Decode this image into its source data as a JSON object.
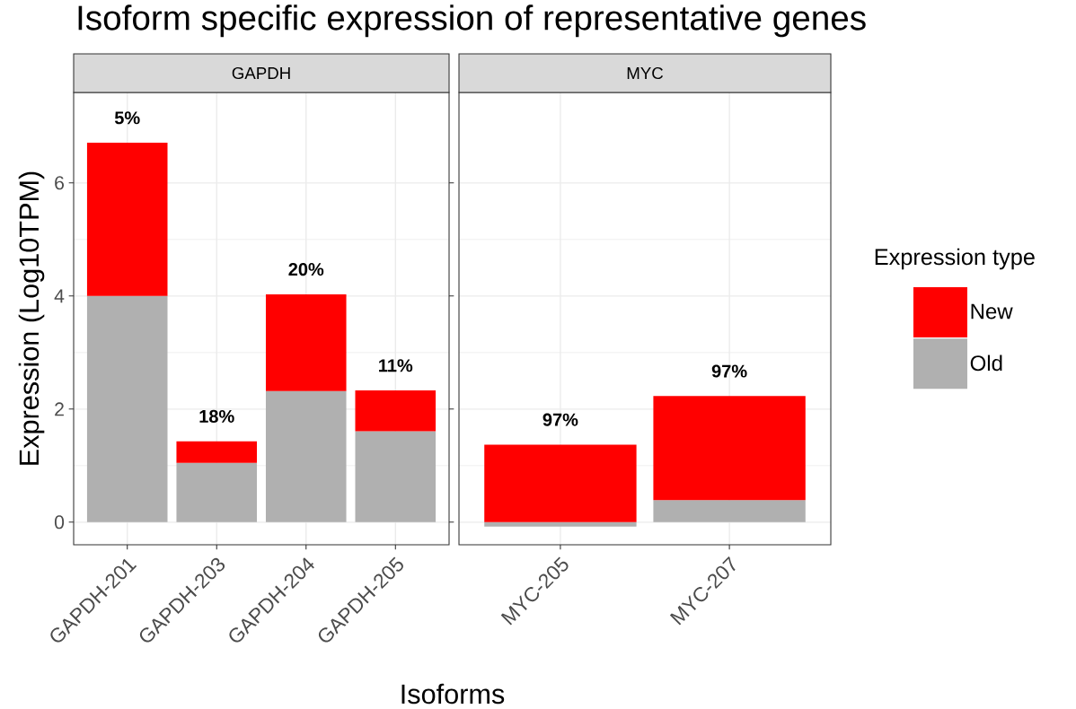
{
  "chart_data": [
    {
      "type": "bar",
      "stacked": true,
      "title": "Isoform specific expression of representative genes",
      "subtitle": "GAPDH",
      "xlabel": "Isoforms",
      "ylabel": "Expression (Log10TPM)",
      "categories": [
        "GAPDH-201",
        "GAPDH-203",
        "GAPDH-204",
        "GAPDH-205"
      ],
      "series": [
        {
          "color": "#b0b0b0",
          "values": [
            4.0,
            1.05,
            2.32,
            1.61
          ]
        },
        {
          "color": "#ff0000",
          "values": [
            2.71,
            0.38,
            1.71,
            0.72
          ]
        }
      ],
      "ylim": [
        -0.4,
        7.6
      ],
      "yticks": [
        0,
        2,
        4,
        6
      ],
      "grid": true,
      "annotations": [
        "5%",
        "18%",
        "20%",
        "11%"
      ]
    },
    {
      "type": "bar",
      "stacked": true,
      "subtitle": "MYC",
      "legend_title": "Expression type",
      "legend": "right",
      "tick_labels": "x",
      "categories": [
        "MYC-205",
        "MYC-207"
      ],
      "series": [
        {
          "name": "Old",
          "color": "#b0b0b0",
          "values": [
            -0.08,
            0.39
          ]
        },
        {
          "name": "New",
          "color": "#ff0000",
          "values": [
            1.37,
            1.84
          ]
        }
      ],
      "ylim": [
        -0.4,
        7.6
      ],
      "yticks": [
        0,
        2,
        4,
        6
      ],
      "grid": true,
      "annotations": [
        "97%",
        "97%"
      ]
    }
  ]
}
